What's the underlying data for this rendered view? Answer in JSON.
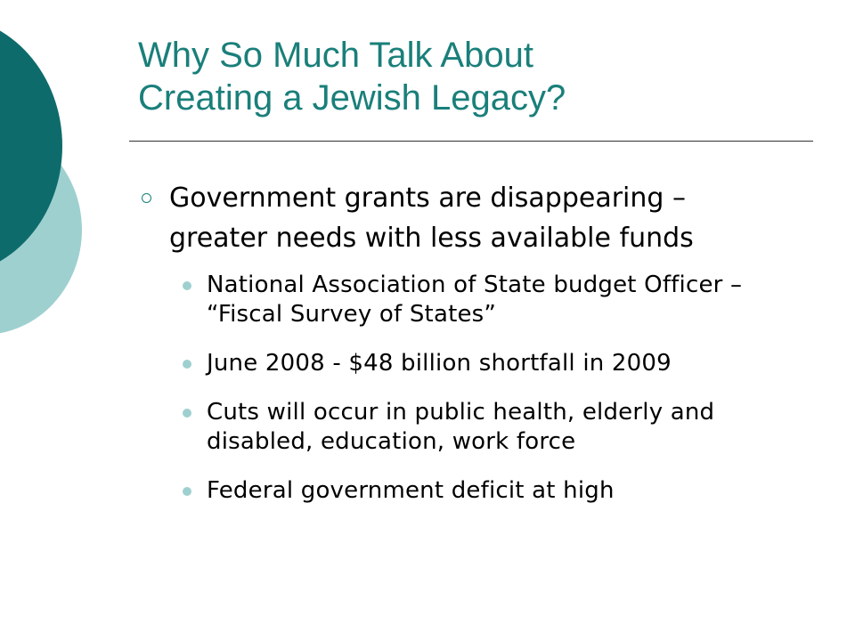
{
  "slide": {
    "title_line1": "Why So Much Talk About",
    "title_line2": "Creating a Jewish Legacy?",
    "main_bullet": "Government grants are disappearing – greater needs with less available funds",
    "sub_bullets": [
      "National Association of State budget Officer – “Fiscal Survey of States”",
      "June 2008 - $48 billion shortfall in 2009",
      "Cuts will occur in public health, elderly and disabled, education, work force",
      "Federal government deficit at high"
    ]
  },
  "colors": {
    "title": "#1a7f7a",
    "circle_dark": "#0e6b6b",
    "circle_light": "#9fd0d0",
    "text": "#000000"
  },
  "icons": {
    "main_bullet_marker": "hollow-circle-icon",
    "sub_bullet_marker": "filled-dot-icon"
  }
}
